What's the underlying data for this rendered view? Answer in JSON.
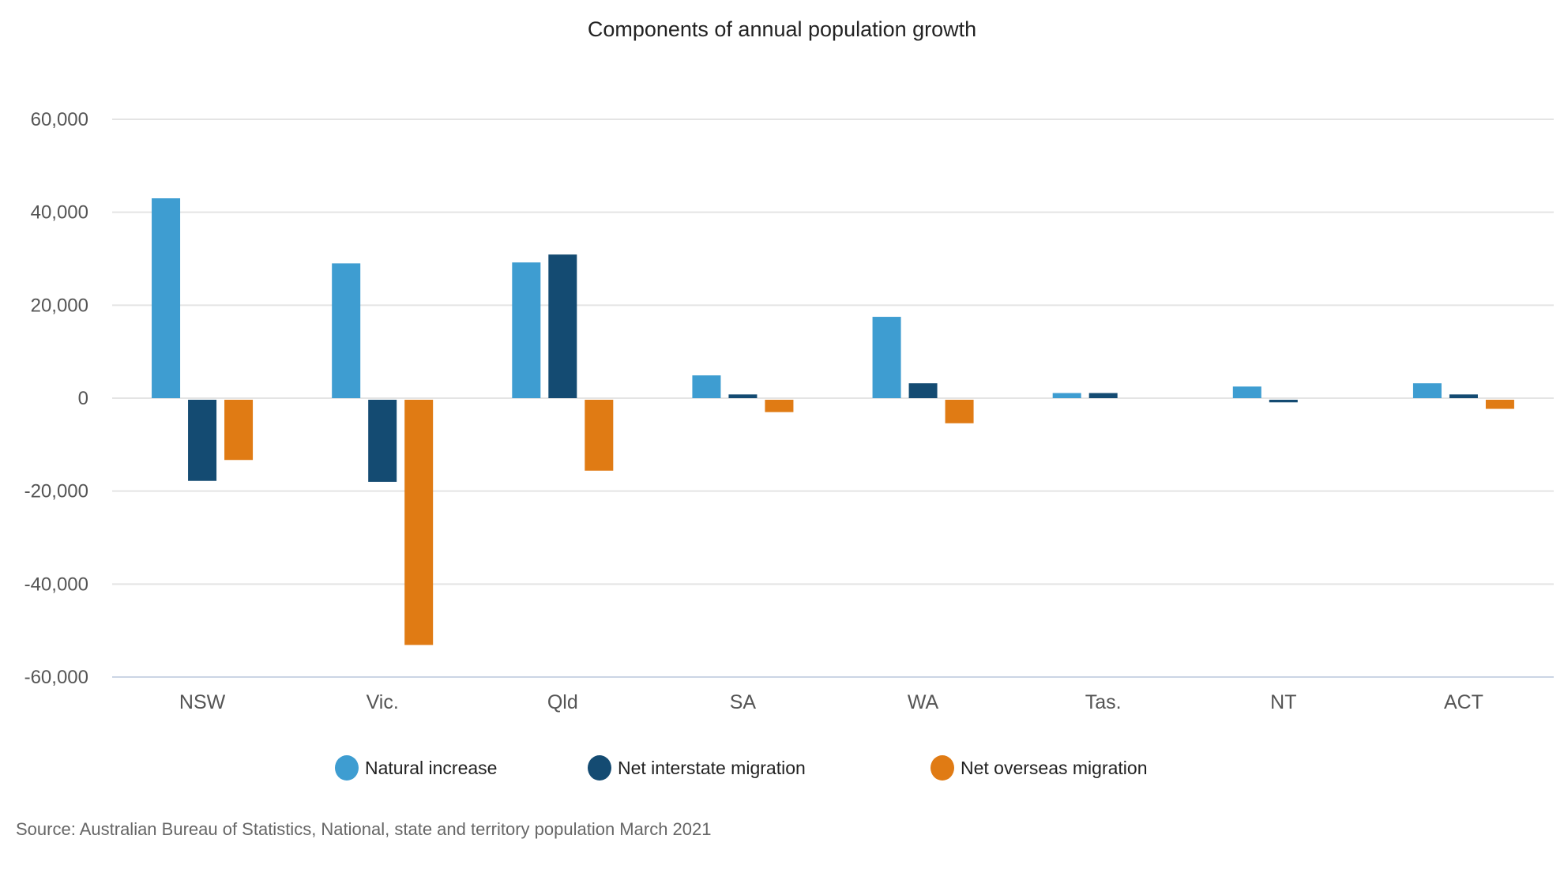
{
  "chart_data": {
    "type": "bar",
    "title": "Components of annual population growth",
    "xlabel": "",
    "ylabel": "",
    "categories": [
      "NSW",
      "Vic.",
      "Qld",
      "SA",
      "WA",
      "Tas.",
      "NT",
      "ACT"
    ],
    "series": [
      {
        "name": "Natural increase",
        "color": "#3e9dd1",
        "values": [
          43000,
          29000,
          29200,
          4900,
          17500,
          1100,
          2500,
          3200
        ]
      },
      {
        "name": "Net interstate migration",
        "color": "#144b72",
        "values": [
          -17800,
          -18000,
          30900,
          800,
          3200,
          1100,
          -900,
          800
        ]
      },
      {
        "name": "Net overseas migration",
        "color": "#e07b14",
        "values": [
          -13300,
          -53100,
          -15600,
          -3000,
          -5400,
          0,
          0,
          -2300
        ]
      }
    ],
    "ylim": [
      -60000,
      60000
    ],
    "yticks": [
      60000,
      40000,
      20000,
      0,
      -20000,
      -40000,
      -60000
    ],
    "ytick_labels": [
      "60,000",
      "40,000",
      "20,000",
      "0",
      "-20,000",
      "-40,000",
      "-60,000"
    ],
    "grid": true,
    "legend_position": "bottom-center",
    "source": "Source: Australian Bureau of Statistics, National, state and territory population March 2021"
  },
  "colors": {
    "gridline": "#e4e4e4",
    "axis": "#cbd5e4"
  }
}
